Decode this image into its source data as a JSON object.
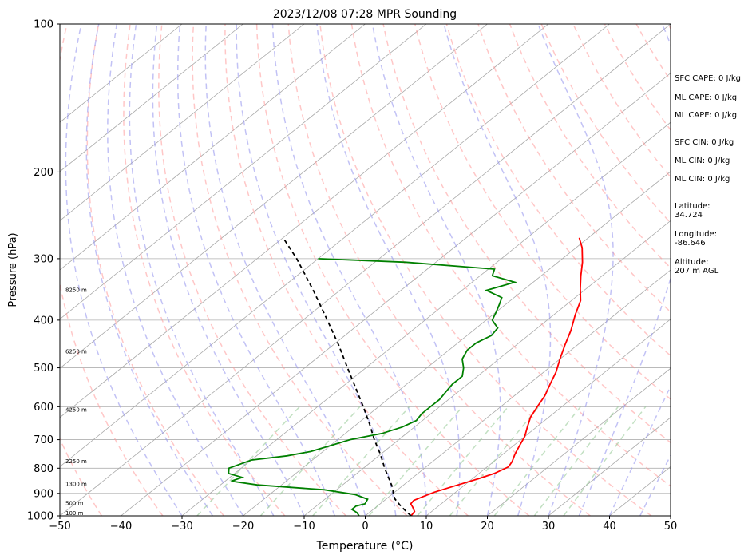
{
  "chart_data": {
    "type": "line",
    "subtype": "skew-t log-p sounding",
    "title": "2023/12/08 07:28 MPR Sounding",
    "xlabel": "Temperature (°C)",
    "ylabel": "Pressure (hPa)",
    "xlim": [
      -50,
      50
    ],
    "ylim": [
      1000,
      100
    ],
    "y_scale": "log",
    "x_ticks": [
      -50,
      -40,
      -30,
      -20,
      -10,
      0,
      10,
      20,
      30,
      40,
      50
    ],
    "y_ticks": [
      100,
      200,
      300,
      400,
      500,
      600,
      700,
      800,
      900,
      1000
    ],
    "grid": true,
    "height_labels": [
      {
        "label": "100 m",
        "pressure": 988
      },
      {
        "label": "500 m",
        "pressure": 944
      },
      {
        "label": "1300 m",
        "pressure": 862
      },
      {
        "label": "2250 m",
        "pressure": 775
      },
      {
        "label": "4250 m",
        "pressure": 609
      },
      {
        "label": "6250 m",
        "pressure": 464
      },
      {
        "label": "8250 m",
        "pressure": 348
      }
    ],
    "series": [
      {
        "role": "temperature",
        "color": "#ff0000",
        "style": "solid",
        "points": [
          [
            1000,
            7.5
          ],
          [
            980,
            7.2
          ],
          [
            960,
            6.0
          ],
          [
            945,
            5.0
          ],
          [
            930,
            4.8
          ],
          [
            915,
            5.5
          ],
          [
            895,
            6.5
          ],
          [
            870,
            8.5
          ],
          [
            840,
            11.0
          ],
          [
            820,
            12.5
          ],
          [
            795,
            13.5
          ],
          [
            775,
            13.0
          ],
          [
            750,
            12.0
          ],
          [
            720,
            11.0
          ],
          [
            690,
            10.0
          ],
          [
            660,
            8.5
          ],
          [
            630,
            7.0
          ],
          [
            600,
            6.0
          ],
          [
            570,
            5.0
          ],
          [
            540,
            3.5
          ],
          [
            510,
            2.0
          ],
          [
            480,
            0.0
          ],
          [
            450,
            -2.0
          ],
          [
            420,
            -4.0
          ],
          [
            390,
            -6.5
          ],
          [
            365,
            -8.5
          ],
          [
            345,
            -11.0
          ],
          [
            325,
            -13.5
          ],
          [
            305,
            -16.0
          ],
          [
            285,
            -19.0
          ],
          [
            272,
            -21.5
          ]
        ]
      },
      {
        "role": "dewpoint",
        "color": "#008000",
        "style": "solid",
        "points": [
          [
            1000,
            -1.0
          ],
          [
            985,
            -2.0
          ],
          [
            970,
            -3.5
          ],
          [
            955,
            -3.5
          ],
          [
            945,
            -2.5
          ],
          [
            925,
            -3.0
          ],
          [
            905,
            -6.0
          ],
          [
            885,
            -12.0
          ],
          [
            865,
            -24.0
          ],
          [
            850,
            -29.0
          ],
          [
            835,
            -28.0
          ],
          [
            820,
            -31.0
          ],
          [
            800,
            -32.0
          ],
          [
            785,
            -31.0
          ],
          [
            770,
            -30.0
          ],
          [
            755,
            -25.0
          ],
          [
            740,
            -22.0
          ],
          [
            720,
            -20.0
          ],
          [
            700,
            -18.0
          ],
          [
            680,
            -14.0
          ],
          [
            660,
            -12.0
          ],
          [
            640,
            -11.0
          ],
          [
            620,
            -11.5
          ],
          [
            600,
            -11.5
          ],
          [
            580,
            -11.5
          ],
          [
            560,
            -12.0
          ],
          [
            540,
            -12.5
          ],
          [
            520,
            -12.5
          ],
          [
            500,
            -14.0
          ],
          [
            480,
            -16.0
          ],
          [
            460,
            -17.0
          ],
          [
            445,
            -17.0
          ],
          [
            430,
            -16.0
          ],
          [
            415,
            -16.5
          ],
          [
            400,
            -19.0
          ],
          [
            385,
            -20.0
          ],
          [
            372,
            -21.0
          ],
          [
            360,
            -22.0
          ],
          [
            348,
            -26.0
          ],
          [
            335,
            -23.0
          ],
          [
            325,
            -28.0
          ],
          [
            315,
            -29.0
          ],
          [
            305,
            -45.0
          ],
          [
            300,
            -60.0
          ]
        ]
      },
      {
        "role": "parcel",
        "color": "#000000",
        "style": "dashed",
        "points": [
          [
            1000,
            7.5
          ],
          [
            960,
            4.2
          ],
          [
            925,
            1.5
          ],
          [
            900,
            0.0
          ],
          [
            880,
            -1.0
          ],
          [
            850,
            -3.0
          ],
          [
            800,
            -6.5
          ],
          [
            750,
            -10.0
          ],
          [
            700,
            -14.0
          ],
          [
            650,
            -18.0
          ],
          [
            600,
            -22.5
          ],
          [
            550,
            -27.5
          ],
          [
            500,
            -33.0
          ],
          [
            450,
            -39.0
          ],
          [
            400,
            -46.0
          ],
          [
            350,
            -54.0
          ],
          [
            300,
            -63.5
          ],
          [
            272,
            -70.0
          ]
        ]
      }
    ],
    "background_lines": {
      "isotherms_color": "#a9a9a9",
      "dry_adiabats_color": "#ff9999",
      "moist_adiabats_color": "#9999ee",
      "mixing_ratio_color": "#99cc99",
      "dry_adiabat_thetas_K": [
        210,
        220,
        230,
        240,
        250,
        260,
        270,
        280,
        290,
        300,
        310,
        320,
        330,
        340,
        350,
        360,
        370,
        380,
        390,
        400,
        410,
        420,
        430,
        440,
        450
      ],
      "moist_adiabat_start_temps_C": [
        -30,
        -25,
        -20,
        -15,
        -10,
        -5,
        0,
        5,
        10,
        15,
        20,
        25,
        30,
        35,
        40,
        45,
        50
      ],
      "mixing_ratios_gkg": [
        0.4,
        1,
        2,
        4,
        7,
        10,
        16,
        24,
        32
      ]
    }
  },
  "side_info": {
    "sfc_cape": "SFC CAPE: 0 J/kg",
    "ml_cape_1": "ML CAPE: 0 J/kg",
    "ml_cape_2": "ML CAPE: 0 J/kg",
    "sfc_cin": "SFC CIN: 0 J/kg",
    "ml_cin_1": "ML CIN: 0 J/kg",
    "ml_cin_2": "ML CIN: 0 J/kg",
    "latitude_label": "Latitude:",
    "latitude_value": "34.724",
    "longitude_label": "Longitude:",
    "longitude_value": "-86.646",
    "altitude_label": "Altitude:",
    "altitude_value": "207 m AGL"
  }
}
